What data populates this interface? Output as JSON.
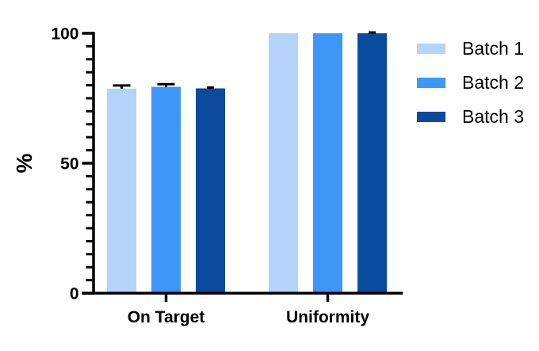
{
  "chart_data": {
    "type": "bar",
    "title": "",
    "xlabel": "",
    "ylabel": "%",
    "categories": [
      "On Target",
      "Uniformity"
    ],
    "series": [
      {
        "name": "Batch 1",
        "color": "#B4D3F9",
        "values": [
          78.7,
          100
        ],
        "errors": [
          1.2,
          0
        ]
      },
      {
        "name": "Batch 2",
        "color": "#3E96F7",
        "values": [
          79.4,
          100
        ],
        "errors": [
          1.0,
          0
        ]
      },
      {
        "name": "Batch 3",
        "color": "#0A4B9E",
        "values": [
          78.8,
          100
        ],
        "errors": [
          0.3,
          0.3
        ]
      }
    ],
    "ylim": [
      0,
      100
    ],
    "yticks": [
      0,
      50,
      100
    ],
    "minor_tick_step": 5,
    "grid": false,
    "legend_position": "right",
    "axis_color": "#000000",
    "error_bar_color": "#000000",
    "background_color": "#FFFFFF"
  }
}
